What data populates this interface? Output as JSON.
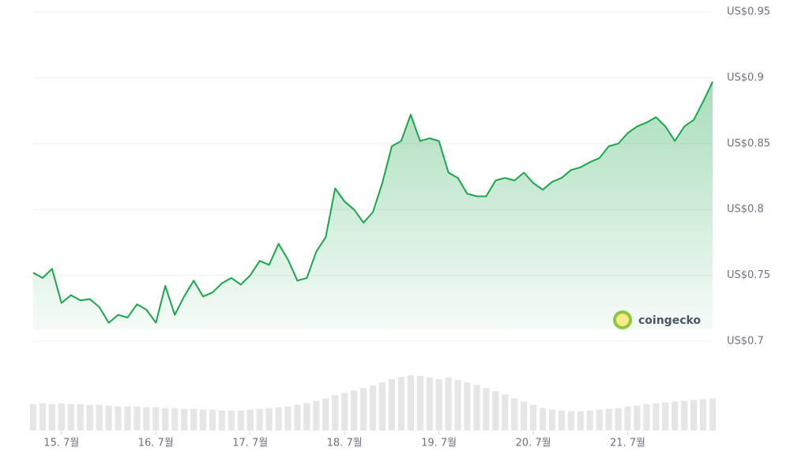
{
  "chart_data": {
    "type": "line",
    "x": [
      14.7,
      14.8,
      14.9,
      15.0,
      15.1,
      15.2,
      15.3,
      15.4,
      15.5,
      15.6,
      15.7,
      15.8,
      15.9,
      16.0,
      16.1,
      16.2,
      16.3,
      16.4,
      16.5,
      16.6,
      16.7,
      16.8,
      16.9,
      17.0,
      17.1,
      17.2,
      17.3,
      17.4,
      17.5,
      17.6,
      17.7,
      17.8,
      17.9,
      18.0,
      18.1,
      18.2,
      18.3,
      18.4,
      18.5,
      18.6,
      18.7,
      18.8,
      18.9,
      19.0,
      19.1,
      19.2,
      19.3,
      19.4,
      19.5,
      19.6,
      19.7,
      19.8,
      19.9,
      20.0,
      20.1,
      20.2,
      20.3,
      20.4,
      20.5,
      20.6,
      20.7,
      20.8,
      20.9,
      21.0,
      21.1,
      21.2,
      21.3,
      21.4,
      21.5,
      21.6,
      21.7,
      21.8,
      21.9
    ],
    "series": [
      {
        "color": "#1aa64a",
        "values": [
          0.752,
          0.748,
          0.755,
          0.729,
          0.735,
          0.731,
          0.732,
          0.726,
          0.714,
          0.72,
          0.718,
          0.728,
          0.724,
          0.714,
          0.742,
          0.72,
          0.734,
          0.746,
          0.734,
          0.737,
          0.744,
          0.748,
          0.743,
          0.75,
          0.761,
          0.758,
          0.774,
          0.762,
          0.746,
          0.748,
          0.768,
          0.779,
          0.816,
          0.806,
          0.8,
          0.79,
          0.798,
          0.82,
          0.848,
          0.852,
          0.872,
          0.852,
          0.854,
          0.852,
          0.828,
          0.824,
          0.812,
          0.81,
          0.81,
          0.822,
          0.824,
          0.822,
          0.828,
          0.82,
          0.815,
          0.821,
          0.824,
          0.83,
          0.832,
          0.836,
          0.839,
          0.848,
          0.85,
          0.858,
          0.863,
          0.866,
          0.87,
          0.863,
          0.852,
          0.863,
          0.868,
          0.882,
          0.897
        ]
      }
    ],
    "volumes": {
      "color": "#e6e6e6",
      "values": [
        33,
        34,
        33,
        34,
        33,
        33,
        32,
        32,
        31,
        30,
        30,
        30,
        29,
        29,
        28,
        28,
        27,
        27,
        26,
        26,
        25,
        25,
        25,
        26,
        27,
        28,
        29,
        30,
        32,
        34,
        37,
        40,
        44,
        47,
        50,
        53,
        56,
        60,
        64,
        67,
        69,
        68,
        66,
        64,
        66,
        63,
        60,
        57,
        53,
        49,
        45,
        40,
        36,
        32,
        28,
        26,
        25,
        24,
        24,
        25,
        26,
        27,
        28,
        30,
        31,
        33,
        34,
        35,
        36,
        37,
        38,
        39,
        40
      ]
    },
    "xlim": [
      14.7,
      21.9
    ],
    "xticks": [
      {
        "value": 15,
        "label": "15. 7월"
      },
      {
        "value": 16,
        "label": "16. 7월"
      },
      {
        "value": 17,
        "label": "17. 7월"
      },
      {
        "value": 18,
        "label": "18. 7월"
      },
      {
        "value": 19,
        "label": "19. 7월"
      },
      {
        "value": 20,
        "label": "20. 7월"
      },
      {
        "value": 21,
        "label": "21. 7월"
      }
    ],
    "ylim": [
      0.7,
      0.95
    ],
    "yticks": [
      {
        "value": 0.95,
        "label": "US$0.95"
      },
      {
        "value": 0.9,
        "label": "US$0.9"
      },
      {
        "value": 0.85,
        "label": "US$0.85"
      },
      {
        "value": 0.8,
        "label": "US$0.8"
      },
      {
        "value": 0.75,
        "label": "US$0.75"
      },
      {
        "value": 0.7,
        "label": "US$0.7"
      }
    ],
    "grid": true,
    "watermark": "coingecko"
  }
}
